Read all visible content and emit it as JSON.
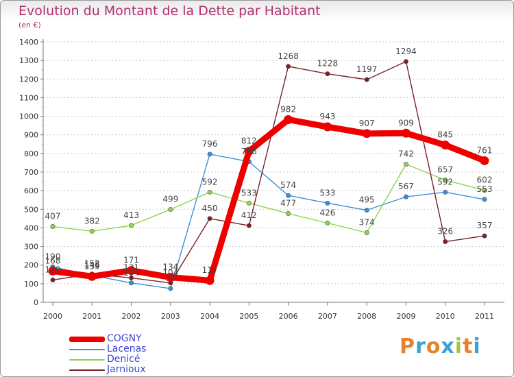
{
  "title": "Evolution du Montant de la Dette par Habitant",
  "unit": "(en €)",
  "brand": {
    "text": "Proxiti",
    "colors": [
      "#e8822a",
      "#3aa0d8",
      "#e8822a",
      "#3aa0d8",
      "#a0c83c",
      "#e8822a",
      "#3aa0d8"
    ]
  },
  "chart_data": {
    "type": "line",
    "title": "Evolution du Montant de la Dette par Habitant",
    "ylabel": "(en €)",
    "xlabel": "",
    "ylim": [
      0,
      1400
    ],
    "ytick_step": 100,
    "grid": "horizontal dashed",
    "legend_placement": "bottom-left",
    "categories": [
      "2000",
      "2001",
      "2002",
      "2003",
      "2004",
      "2005",
      "2006",
      "2007",
      "2008",
      "2009",
      "2010",
      "2011"
    ],
    "series": [
      {
        "name": "COGNY",
        "color": "#ee0000",
        "emphasis": true,
        "values": [
          168,
          139,
          171,
          134,
          117,
          812,
          982,
          943,
          907,
          909,
          845,
          761
        ],
        "labels": [
          "168",
          "139",
          "171",
          "134",
          "117",
          "812",
          "982",
          "943",
          "907",
          "909",
          "845",
          "761"
        ]
      },
      {
        "name": "Lacenas",
        "color": "#3b8fd9",
        "emphasis": false,
        "values": [
          190,
          145,
          104,
          74,
          796,
          756,
          574,
          533,
          495,
          567,
          592,
          553
        ],
        "labels": [
          "190",
          "145",
          "104",
          "74",
          "796",
          "756",
          "574",
          "533",
          "495",
          "567",
          "592",
          "553"
        ]
      },
      {
        "name": "Denicé",
        "color": "#8fd44e",
        "emphasis": false,
        "values": [
          407,
          382,
          413,
          499,
          592,
          533,
          477,
          426,
          374,
          742,
          657,
          602
        ],
        "labels": [
          "407",
          "382",
          "413",
          "499",
          "592",
          "533",
          "477",
          "426",
          "374",
          "742",
          "657",
          "602"
        ]
      },
      {
        "name": "Jarnioux",
        "color": "#7a1f22",
        "emphasis": false,
        "values": [
          120,
          152,
          131,
          104,
          450,
          412,
          1268,
          1228,
          1197,
          1294,
          326,
          357
        ],
        "labels": [
          "120",
          "152",
          "131",
          "104",
          "450",
          "412",
          "1268",
          "1228",
          "1197",
          "1294",
          "326",
          "357"
        ]
      }
    ]
  }
}
